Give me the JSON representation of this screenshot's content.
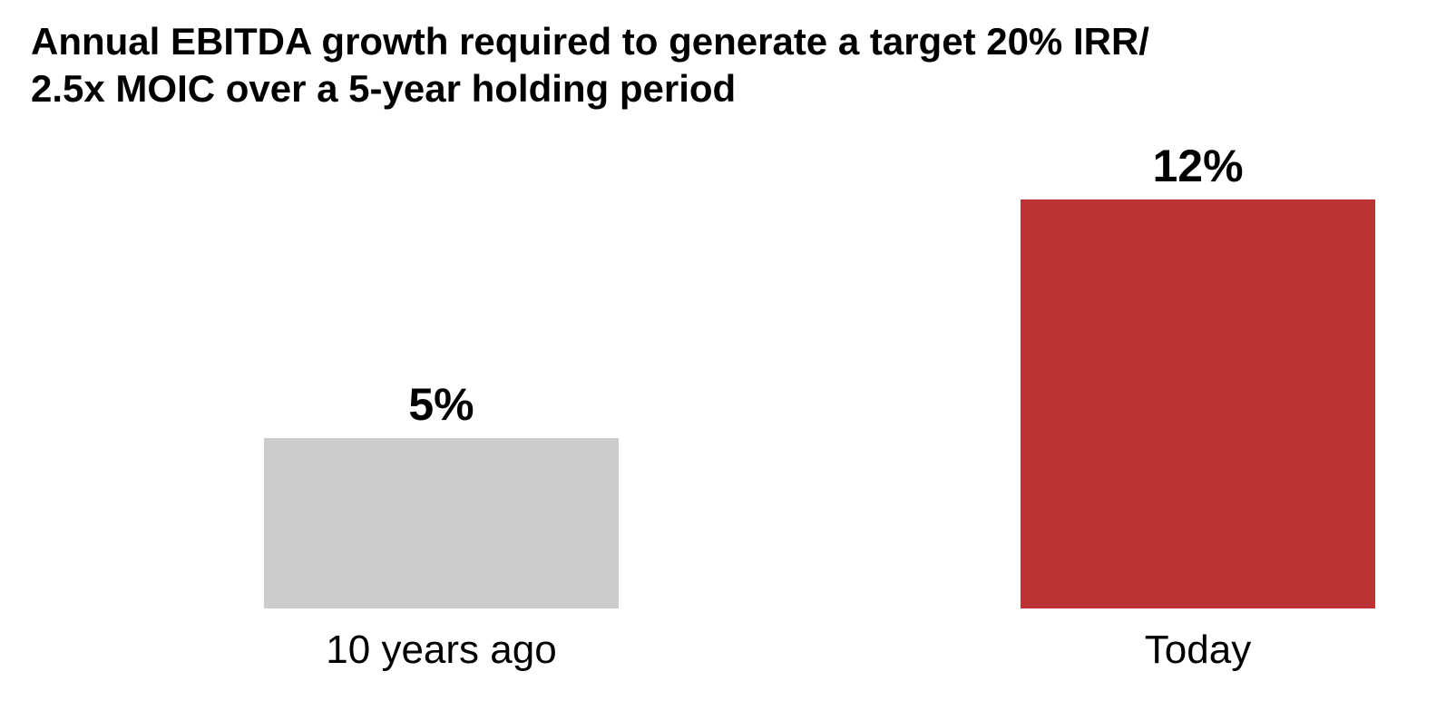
{
  "chart_data": {
    "type": "bar",
    "title": "Annual EBITDA growth required to generate a target 20% IRR/\n2.5x MOIC over a 5-year holding period",
    "categories": [
      "10 years ago",
      "Today"
    ],
    "values": [
      5,
      12
    ],
    "value_labels": [
      "5%",
      "12%"
    ],
    "bar_colors": [
      "#cccccc",
      "#bd3333"
    ],
    "ylim": [
      0,
      12
    ],
    "grid": false,
    "legend": "none",
    "xlabel": "",
    "ylabel": ""
  }
}
